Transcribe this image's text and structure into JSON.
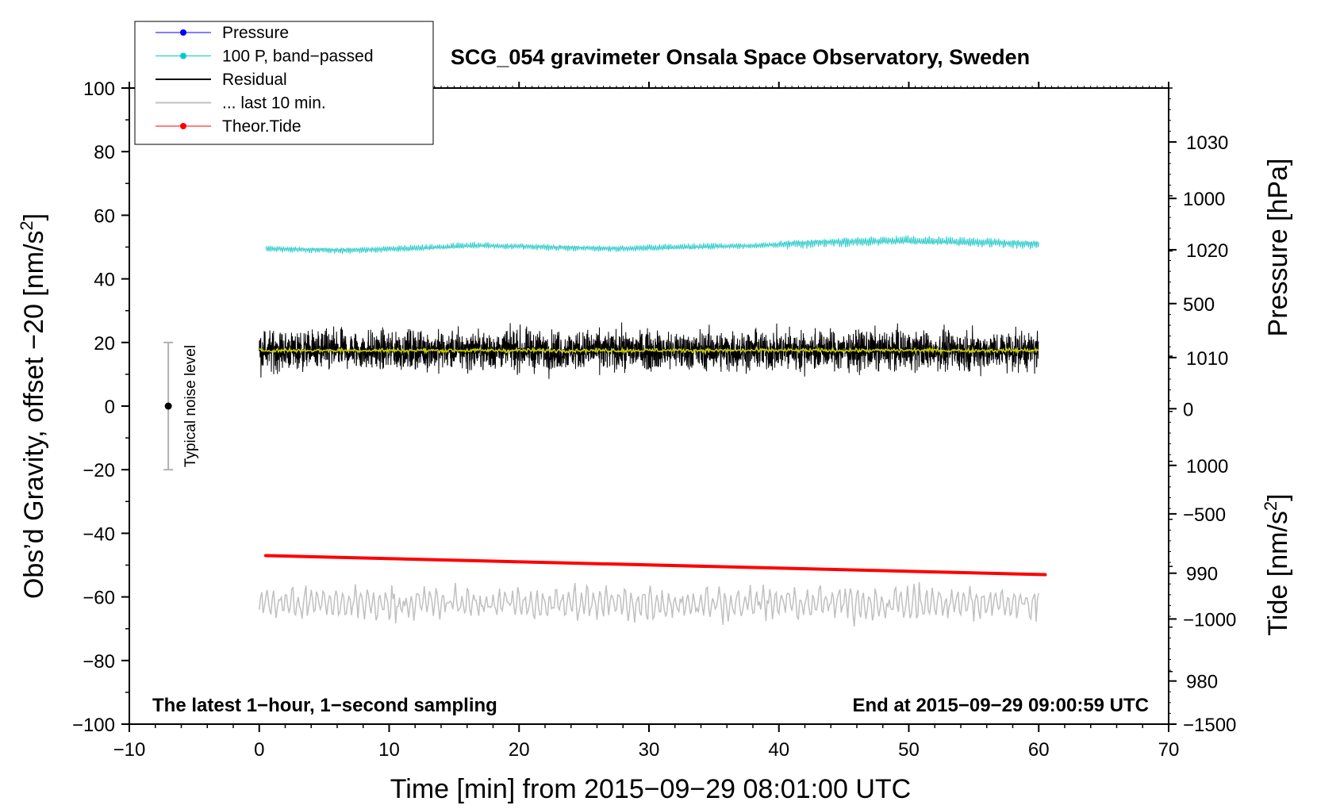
{
  "chart_data": {
    "type": "line",
    "title": "SCG_054 gravimeter Onsala Space Observatory, Sweden",
    "xlabel": "Time [min] from 2015−09−29 08:01:00 UTC",
    "ylabel_left": "Obs’d Gravity, offset −20 [nm/s",
    "ylabel_left_suffix": "]",
    "ylabel_right_pressure": "Pressure [hPa]",
    "ylabel_right_tide": "Tide [nm/s",
    "ylabel_right_tide_suffix": "]",
    "superscript": "2",
    "xlim": [
      -10,
      70
    ],
    "ylim": [
      -100,
      100
    ],
    "pressure_lim": [
      976,
      1035
    ],
    "tide_lim": [
      -1500,
      1525
    ],
    "x_ticks": [
      "−10",
      "0",
      "10",
      "20",
      "30",
      "40",
      "50",
      "60",
      "70"
    ],
    "x_tick_values": [
      -10,
      0,
      10,
      20,
      30,
      40,
      50,
      60,
      70
    ],
    "y_ticks": [
      "100",
      "80",
      "60",
      "40",
      "20",
      "0",
      "−20",
      "−40",
      "−60",
      "−80",
      "−100"
    ],
    "y_tick_values": [
      100,
      80,
      60,
      40,
      20,
      0,
      -20,
      -40,
      -60,
      -80,
      -100
    ],
    "pressure_ticks": [
      "1030",
      "1020",
      "1010",
      "1000",
      "990",
      "980"
    ],
    "pressure_tick_values": [
      1030,
      1020,
      1010,
      1000,
      990,
      980
    ],
    "tide_ticks": [
      "1000",
      "500",
      "0",
      "−500",
      "−1000",
      "−1500"
    ],
    "tide_tick_values": [
      1000,
      500,
      0,
      -500,
      -1000,
      -1500
    ],
    "bottom_left_note": "The latest 1−hour, 1−second sampling",
    "bottom_right_note": "End at 2015−09−29 09:00:59 UTC",
    "noise_label": "Typical noise level",
    "noise_bar": {
      "x": -7,
      "center": 0,
      "low": -20,
      "high": 20
    },
    "legend": [
      {
        "label": "Pressure",
        "color": "#0000ff",
        "marker": true
      },
      {
        "label": "100 P, band−passed",
        "color": "#00cccc",
        "marker": true
      },
      {
        "label": "Residual",
        "color": "#000000",
        "marker": false
      },
      {
        "label": "... last 10 min.",
        "color": "#c0c0c0",
        "marker": false
      },
      {
        "label": "Theor.Tide",
        "color": "#ff0000",
        "marker": true
      }
    ],
    "series": [
      {
        "name": "100 P, band−passed",
        "color": "#33cccc",
        "x_range": [
          0.5,
          60
        ],
        "baseline": [
          49.5,
          49,
          49.5,
          50.5,
          50,
          49.5,
          50,
          50.5,
          51.5,
          52,
          51.5,
          51
        ],
        "noise": 0.8
      },
      {
        "name": "Residual",
        "color": "#000000",
        "x_range": [
          0,
          60
        ],
        "mean": 17.5,
        "noise": 4,
        "min": 5,
        "max": 29
      },
      {
        "name": "Residual smoothed",
        "color": "#cccc00",
        "x_range": [
          0,
          60
        ],
        "mean": 17.5,
        "noise": 0.6
      },
      {
        "name": "... last 10 min.",
        "color": "#c0c0c0",
        "x_range": [
          0,
          60
        ],
        "mean": -62,
        "noise": 4,
        "min": -75,
        "max": -51
      },
      {
        "name": "Theor.Tide",
        "color": "#ff0000",
        "x": [
          0.5,
          60.5
        ],
        "y": [
          -47,
          -53
        ]
      }
    ]
  }
}
